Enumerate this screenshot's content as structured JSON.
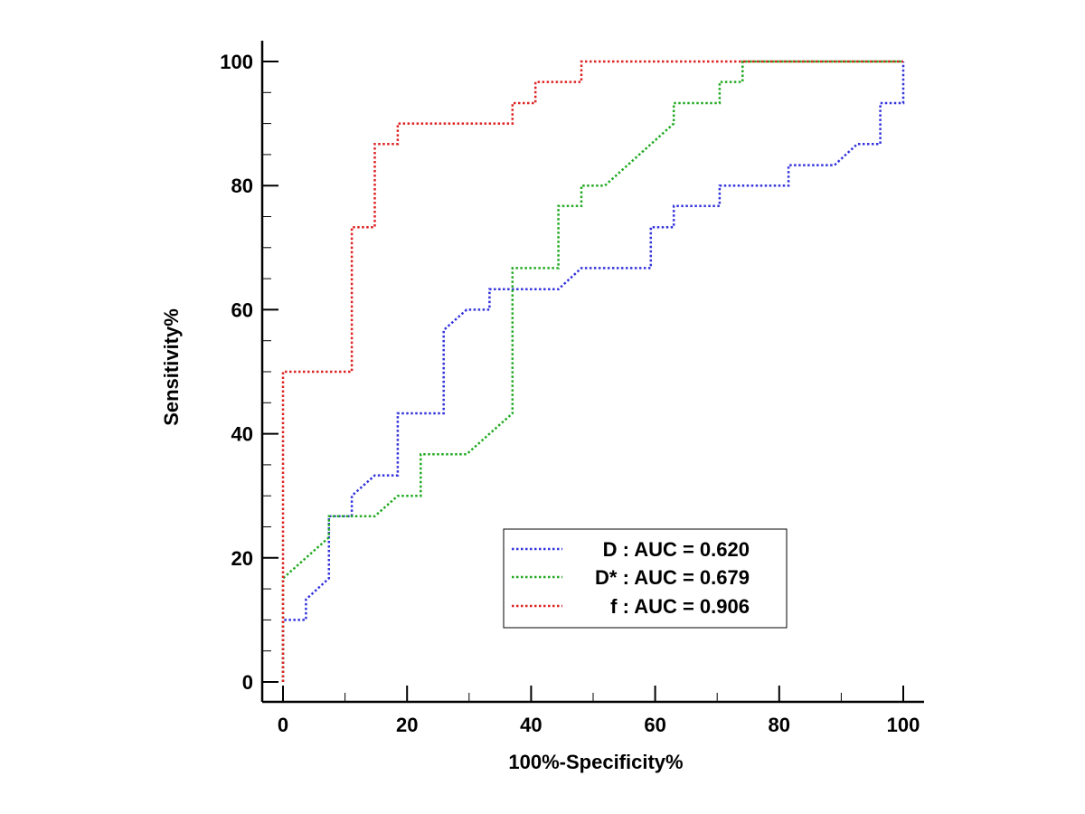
{
  "chart_data": {
    "type": "line",
    "title": "",
    "xlabel": "100%-Specificity%",
    "ylabel": "Sensitivity%",
    "xlim": [
      0,
      100
    ],
    "ylim": [
      0,
      100
    ],
    "xticks": [
      "0",
      "20",
      "40",
      "60",
      "80",
      "100"
    ],
    "yticks": [
      "0",
      "20",
      "40",
      "60",
      "80",
      "100"
    ],
    "grid": false,
    "legend_position": "bottom-right",
    "series": [
      {
        "name": "D : AUC = 0.620",
        "color": "#3333dd",
        "points": [
          [
            0,
            0
          ],
          [
            0,
            10
          ],
          [
            3.7,
            10
          ],
          [
            3.7,
            13.3
          ],
          [
            7.4,
            16.7
          ],
          [
            7.4,
            26.7
          ],
          [
            11.1,
            26.7
          ],
          [
            11.1,
            30
          ],
          [
            14.8,
            33.3
          ],
          [
            18.5,
            33.3
          ],
          [
            18.5,
            43.3
          ],
          [
            25.9,
            43.3
          ],
          [
            25.9,
            56.7
          ],
          [
            29.6,
            60
          ],
          [
            33.3,
            60
          ],
          [
            33.3,
            63.3
          ],
          [
            44.4,
            63.3
          ],
          [
            48.1,
            66.7
          ],
          [
            59.3,
            66.7
          ],
          [
            59.3,
            73.3
          ],
          [
            63,
            73.3
          ],
          [
            63,
            76.7
          ],
          [
            70.4,
            76.7
          ],
          [
            70.4,
            80
          ],
          [
            81.5,
            80
          ],
          [
            81.5,
            83.3
          ],
          [
            88.9,
            83.3
          ],
          [
            92.6,
            86.7
          ],
          [
            96.3,
            86.7
          ],
          [
            96.3,
            93.3
          ],
          [
            100,
            93.3
          ],
          [
            100,
            100
          ]
        ]
      },
      {
        "name": "D* : AUC = 0.679",
        "color": "#22aa22",
        "points": [
          [
            0,
            0
          ],
          [
            0,
            16.7
          ],
          [
            7.4,
            23.3
          ],
          [
            7.4,
            26.7
          ],
          [
            14.8,
            26.7
          ],
          [
            18.5,
            30
          ],
          [
            22.2,
            30
          ],
          [
            22.2,
            36.7
          ],
          [
            29.6,
            36.7
          ],
          [
            37,
            43.3
          ],
          [
            37,
            66.7
          ],
          [
            44.4,
            66.7
          ],
          [
            44.4,
            76.7
          ],
          [
            48.1,
            76.7
          ],
          [
            48.1,
            80
          ],
          [
            51.9,
            80
          ],
          [
            63,
            90
          ],
          [
            63,
            93.3
          ],
          [
            70.4,
            93.3
          ],
          [
            70.4,
            96.7
          ],
          [
            74.1,
            96.7
          ],
          [
            74.1,
            100
          ],
          [
            100,
            100
          ]
        ]
      },
      {
        "name": "f : AUC = 0.906",
        "color": "#dd2222",
        "points": [
          [
            0,
            0
          ],
          [
            0,
            50
          ],
          [
            11.1,
            50
          ],
          [
            11.1,
            73.3
          ],
          [
            14.8,
            73.3
          ],
          [
            14.8,
            86.7
          ],
          [
            18.5,
            86.7
          ],
          [
            18.5,
            90
          ],
          [
            37,
            90
          ],
          [
            37,
            93.3
          ],
          [
            40.7,
            93.3
          ],
          [
            40.7,
            96.7
          ],
          [
            48.1,
            96.7
          ],
          [
            48.1,
            100
          ],
          [
            100,
            100
          ]
        ]
      }
    ],
    "legend": {
      "entries": [
        "D : AUC = 0.620",
        "D* : AUC = 0.679",
        "f : AUC = 0.906"
      ]
    }
  }
}
